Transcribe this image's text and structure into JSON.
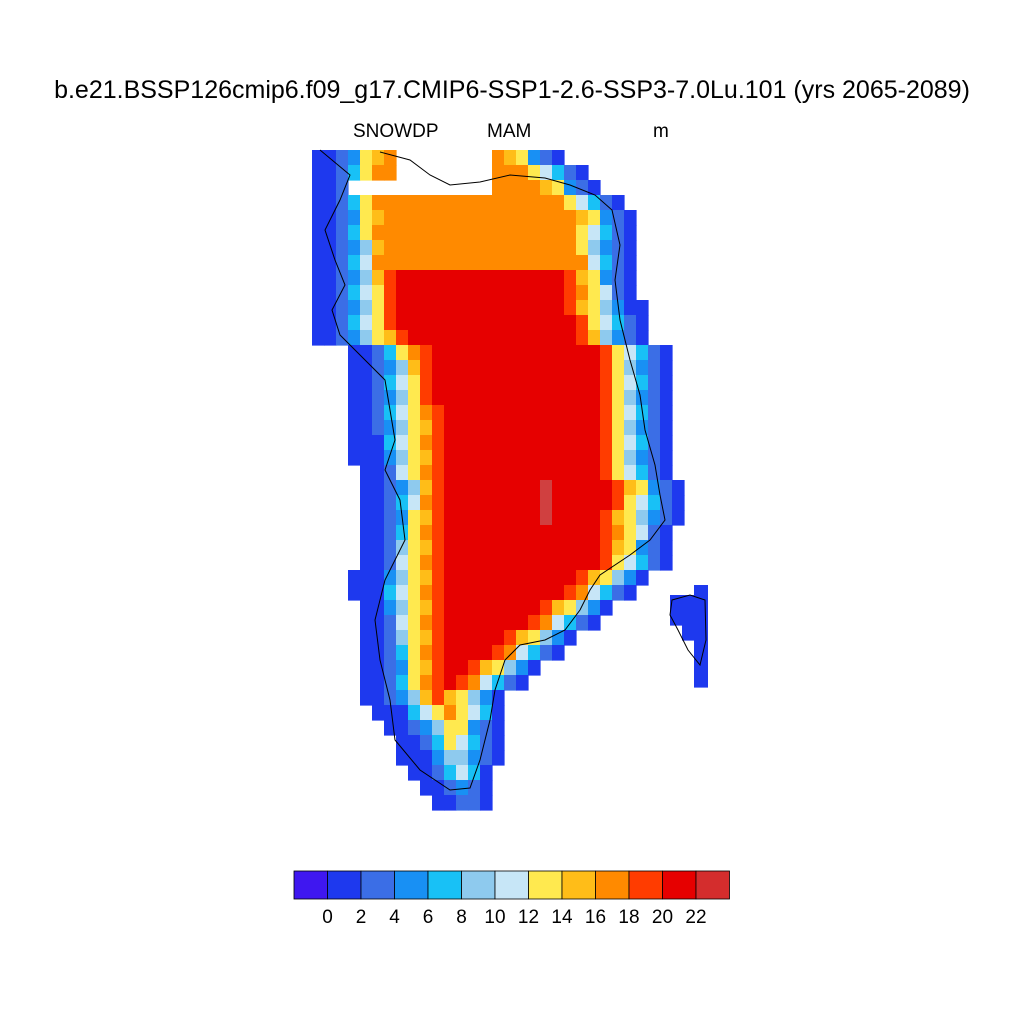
{
  "title": "b.e21.BSSP126cmip6.f09_g17.CMIP6-SSP1-2.6-SSP3-7.0Lu.101 (yrs 2065-2089)",
  "variable": "SNOWDP",
  "season": "MAM",
  "units": "m",
  "colorbar": {
    "colors": [
      "#3f17f0",
      "#1e39ee",
      "#3b6ee6",
      "#1890f4",
      "#18c1f6",
      "#8ecaee",
      "#c7e6f7",
      "#ffe94f",
      "#ffbd18",
      "#ff8a00",
      "#ff3c00",
      "#e60000",
      "#d42d2d"
    ],
    "tick_labels": [
      "0",
      "2",
      "4",
      "6",
      "8",
      "10",
      "12",
      "14",
      "16",
      "18",
      "20",
      "22"
    ]
  },
  "map": {
    "region": "Greenland",
    "palette": [
      "#1e39ee",
      "#3b6ee6",
      "#1890f4",
      "#18c1f6",
      "#8ecaee",
      "#c7e6f7",
      "#ffe94f",
      "#ffbd18",
      "#ff8a00",
      "#ff3c00",
      "#e60000",
      "#d04040"
    ]
  }
}
